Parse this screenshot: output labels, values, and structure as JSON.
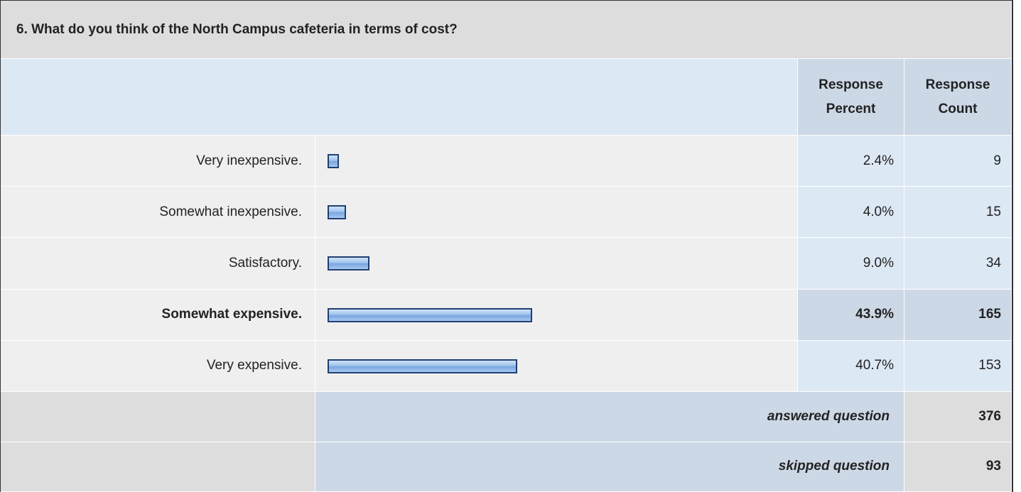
{
  "question": "6. What do you think of the North Campus cafeteria in terms of cost?",
  "headers": {
    "percent": "Response Percent",
    "count": "Response Count"
  },
  "rows": [
    {
      "label": "Very inexpensive.",
      "percent": 2.4,
      "percent_label": "2.4%",
      "count": 9
    },
    {
      "label": "Somewhat inexpensive.",
      "percent": 4.0,
      "percent_label": "4.0%",
      "count": 15
    },
    {
      "label": "Satisfactory.",
      "percent": 9.0,
      "percent_label": "9.0%",
      "count": 34
    },
    {
      "label": "Somewhat expensive.",
      "percent": 43.9,
      "percent_label": "43.9%",
      "count": 165
    },
    {
      "label": "Very expensive.",
      "percent": 40.7,
      "percent_label": "40.7%",
      "count": 153
    }
  ],
  "footer": [
    {
      "label": "answered question",
      "count": 376
    },
    {
      "label": "skipped question",
      "count": 93
    }
  ]
}
